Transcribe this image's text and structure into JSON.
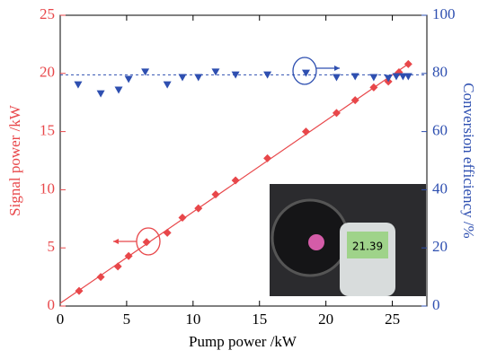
{
  "chart_data": {
    "type": "scatter",
    "xlabel": "Pump power /kW",
    "ylabel": "Signal power /kW",
    "y2label": "Conversion efficiency /%",
    "xlim": [
      0,
      27.6
    ],
    "xticks": [
      0,
      5,
      10,
      15,
      20,
      25
    ],
    "ylim": [
      0,
      25
    ],
    "yticks": [
      0,
      5,
      10,
      15,
      20,
      25
    ],
    "y2lim": [
      0,
      100
    ],
    "y2ticks": [
      0,
      20,
      40,
      60,
      80,
      100
    ],
    "reference_line": {
      "value": 79.5,
      "axis": "y2",
      "color": "#2e4fb0"
    },
    "fit_line": true,
    "inset_reading": "21.39",
    "series": [
      {
        "color": "#e8474a",
        "marker": "diamond",
        "axis": "y",
        "x": [
          1.42,
          3.05,
          4.34,
          5.15,
          6.5,
          8.06,
          9.2,
          10.4,
          11.7,
          13.2,
          15.6,
          18.5,
          20.8,
          22.2,
          23.6,
          24.7,
          25.5,
          26.2
        ],
        "values": [
          1.3,
          2.5,
          3.4,
          4.3,
          5.5,
          6.3,
          7.6,
          8.4,
          9.6,
          10.8,
          12.7,
          15.0,
          16.6,
          17.7,
          18.8,
          19.3,
          20.1,
          20.8
        ]
      },
      {
        "color": "#2e4fb0",
        "marker": "triangle-down",
        "axis": "y2",
        "x": [
          1.35,
          3.05,
          4.4,
          5.15,
          6.4,
          8.06,
          9.2,
          10.4,
          11.7,
          13.2,
          15.6,
          18.5,
          20.8,
          22.2,
          23.6,
          24.7,
          25.3,
          25.8,
          26.2
        ],
        "values": [
          76.2,
          73.1,
          74.4,
          78.1,
          80.6,
          76.2,
          78.7,
          78.7,
          80.6,
          79.6,
          79.6,
          80.2,
          78.7,
          79.0,
          78.7,
          78.4,
          79.0,
          79.0,
          79.0
        ]
      }
    ]
  }
}
